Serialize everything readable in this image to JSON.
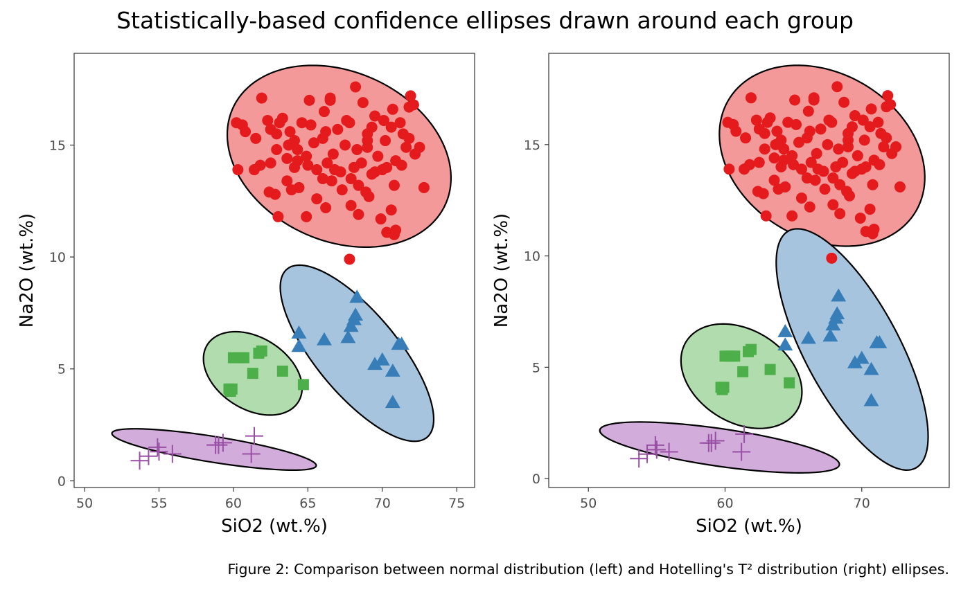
{
  "title": "Statistically-based confidence ellipses drawn around each group",
  "caption": "Figure 2: Comparison between normal distribution (left) and Hotelling's T² distribution (right) ellipses.",
  "chart_data": [
    {
      "type": "scatter",
      "panel": "left",
      "xlabel": "SiO2 (wt.%)",
      "ylabel": "Na2O (wt.%)",
      "xlim": [
        49.3,
        76.2
      ],
      "ylim": [
        -0.3,
        19.1
      ],
      "xticks": [
        50,
        55,
        60,
        65,
        70,
        75
      ],
      "yticks": [
        0,
        5,
        10,
        15
      ],
      "grid": false,
      "ellipse_method": "normal",
      "ellipses": [
        {
          "group": "red",
          "cx": 67.1,
          "cy": 14.5,
          "rx": 7.6,
          "ry": 3.9,
          "angle_deg": -10
        },
        {
          "group": "blue",
          "cx": 68.3,
          "cy": 5.7,
          "rx": 6.1,
          "ry": 2.2,
          "angle_deg": -35
        },
        {
          "group": "green",
          "cx": 61.3,
          "cy": 4.8,
          "rx": 3.4,
          "ry": 1.7,
          "angle_deg": -15
        },
        {
          "group": "purple",
          "cx": 58.7,
          "cy": 1.4,
          "rx": 6.9,
          "ry": 0.58,
          "angle_deg": -6
        }
      ]
    },
    {
      "type": "scatter",
      "panel": "right",
      "xlabel": "SiO2 (wt.%)",
      "ylabel": "Na2O (wt.%)",
      "xlim": [
        47.1,
        76.4
      ],
      "ylim": [
        -0.4,
        19.1
      ],
      "xticks": [
        50,
        60,
        70
      ],
      "yticks": [
        0,
        5,
        10,
        15
      ],
      "grid": false,
      "ellipse_method": "hotelling",
      "ellipses": [
        {
          "group": "red",
          "cx": 67.1,
          "cy": 14.5,
          "rx": 7.6,
          "ry": 3.9,
          "angle_deg": -10
        },
        {
          "group": "blue",
          "cx": 69.3,
          "cy": 5.8,
          "rx": 7.2,
          "ry": 2.9,
          "angle_deg": -44
        },
        {
          "group": "green",
          "cx": 61.2,
          "cy": 4.6,
          "rx": 4.5,
          "ry": 2.2,
          "angle_deg": -12
        },
        {
          "group": "purple",
          "cx": 59.6,
          "cy": 1.4,
          "rx": 8.8,
          "ry": 0.85,
          "angle_deg": -5
        }
      ]
    }
  ],
  "groups": [
    {
      "id": "red",
      "shape": "circle",
      "color": "#e41a1c",
      "fill": "#f4999a",
      "points": [
        [
          61.9,
          17.1
        ],
        [
          63.3,
          16.2
        ],
        [
          63.1,
          16.0
        ],
        [
          62.5,
          15.7
        ],
        [
          62.9,
          15.5
        ],
        [
          63.8,
          15.6
        ],
        [
          64.6,
          16.0
        ],
        [
          65.1,
          17.0
        ],
        [
          66.5,
          17.1
        ],
        [
          66.5,
          17.0
        ],
        [
          68.2,
          17.6
        ],
        [
          68.7,
          16.9
        ],
        [
          67.8,
          16.0
        ],
        [
          69.3,
          15.8
        ],
        [
          70.6,
          15.8
        ],
        [
          71.2,
          16.0
        ],
        [
          71.8,
          16.7
        ],
        [
          71.9,
          17.2
        ],
        [
          72.1,
          16.8
        ],
        [
          71.4,
          15.5
        ],
        [
          71.8,
          15.3
        ],
        [
          72.5,
          14.9
        ],
        [
          72.2,
          14.6
        ],
        [
          72.8,
          13.1
        ],
        [
          70.8,
          13.2
        ],
        [
          70.0,
          13.9
        ],
        [
          69.3,
          13.7
        ],
        [
          68.4,
          13.2
        ],
        [
          68.1,
          14.0
        ],
        [
          67.2,
          13.8
        ],
        [
          66.3,
          14.2
        ],
        [
          65.6,
          13.9
        ],
        [
          64.9,
          14.5
        ],
        [
          64.3,
          14.8
        ],
        [
          63.6,
          14.4
        ],
        [
          62.9,
          14.8
        ],
        [
          62.5,
          14.2
        ],
        [
          61.8,
          14.1
        ],
        [
          61.5,
          15.3
        ],
        [
          60.8,
          15.6
        ],
        [
          60.2,
          16.0
        ],
        [
          60.3,
          13.9
        ],
        [
          60.6,
          15.9
        ],
        [
          61.4,
          13.9
        ],
        [
          62.4,
          12.9
        ],
        [
          62.8,
          12.8
        ],
        [
          63.6,
          13.4
        ],
        [
          64.4,
          13.1
        ],
        [
          64.9,
          11.8
        ],
        [
          66.2,
          12.2
        ],
        [
          67.3,
          13.0
        ],
        [
          67.9,
          12.3
        ],
        [
          68.4,
          11.9
        ],
        [
          68.9,
          12.9
        ],
        [
          69.1,
          12.7
        ],
        [
          69.9,
          11.7
        ],
        [
          70.3,
          11.1
        ],
        [
          70.6,
          12.1
        ],
        [
          70.8,
          11.0
        ],
        [
          70.9,
          11.2
        ],
        [
          63.0,
          11.8
        ],
        [
          67.8,
          9.9
        ],
        [
          64.1,
          15.2
        ],
        [
          65.4,
          15.1
        ],
        [
          66.0,
          15.3
        ],
        [
          66.7,
          14.6
        ],
        [
          67.5,
          15.0
        ],
        [
          68.3,
          14.8
        ],
        [
          69.0,
          14.9
        ],
        [
          69.7,
          14.5
        ],
        [
          70.3,
          14.0
        ],
        [
          70.9,
          14.3
        ],
        [
          65.2,
          15.9
        ],
        [
          66.1,
          16.5
        ],
        [
          67.0,
          15.7
        ],
        [
          69.5,
          16.3
        ],
        [
          70.1,
          16.1
        ],
        [
          70.7,
          16.6
        ],
        [
          69.0,
          15.2
        ],
        [
          68.6,
          14.2
        ],
        [
          67.9,
          13.5
        ],
        [
          66.6,
          13.4
        ],
        [
          65.0,
          14.1
        ],
        [
          64.1,
          14.0
        ],
        [
          63.7,
          15.0
        ],
        [
          62.3,
          16.1
        ],
        [
          64.3,
          14.3
        ],
        [
          66.8,
          13.9
        ],
        [
          69.5,
          13.8
        ],
        [
          71.3,
          14.1
        ],
        [
          70.2,
          15.2
        ],
        [
          71.6,
          14.9
        ],
        [
          69.0,
          15.5
        ],
        [
          67.6,
          16.1
        ],
        [
          66.2,
          15.6
        ],
        [
          65.6,
          12.6
        ],
        [
          63.9,
          13.0
        ],
        [
          66.0,
          13.5
        ]
      ]
    },
    {
      "id": "blue",
      "shape": "triangle",
      "color": "#377eb8",
      "fill": "#a7c4df",
      "points": [
        [
          64.4,
          6.6
        ],
        [
          64.4,
          6.0
        ],
        [
          66.1,
          6.3
        ],
        [
          67.7,
          6.4
        ],
        [
          67.9,
          6.9
        ],
        [
          68.1,
          7.2
        ],
        [
          68.2,
          7.4
        ],
        [
          68.3,
          8.2
        ],
        [
          69.5,
          5.2
        ],
        [
          70.0,
          5.4
        ],
        [
          70.7,
          4.9
        ],
        [
          71.1,
          6.1
        ],
        [
          71.3,
          6.1
        ],
        [
          70.7,
          3.5
        ]
      ]
    },
    {
      "id": "green",
      "shape": "square",
      "color": "#4daf4a",
      "fill": "#b1dcae",
      "points": [
        [
          60.0,
          5.5
        ],
        [
          60.4,
          5.5
        ],
        [
          60.7,
          5.5
        ],
        [
          61.7,
          5.7
        ],
        [
          61.9,
          5.8
        ],
        [
          63.3,
          4.9
        ],
        [
          64.7,
          4.3
        ],
        [
          61.3,
          4.8
        ],
        [
          59.9,
          4.1
        ],
        [
          59.8,
          4.0
        ],
        [
          59.7,
          4.1
        ]
      ]
    },
    {
      "id": "purple",
      "shape": "cross",
      "color": "#984ea3",
      "fill": "#d2addb",
      "points": [
        [
          53.7,
          0.9
        ],
        [
          54.3,
          1.1
        ],
        [
          54.9,
          1.5
        ],
        [
          55.0,
          1.3
        ],
        [
          55.9,
          1.2
        ],
        [
          58.8,
          1.6
        ],
        [
          59.0,
          1.6
        ],
        [
          59.3,
          1.7
        ],
        [
          61.2,
          1.2
        ],
        [
          61.4,
          2.0
        ]
      ]
    }
  ]
}
